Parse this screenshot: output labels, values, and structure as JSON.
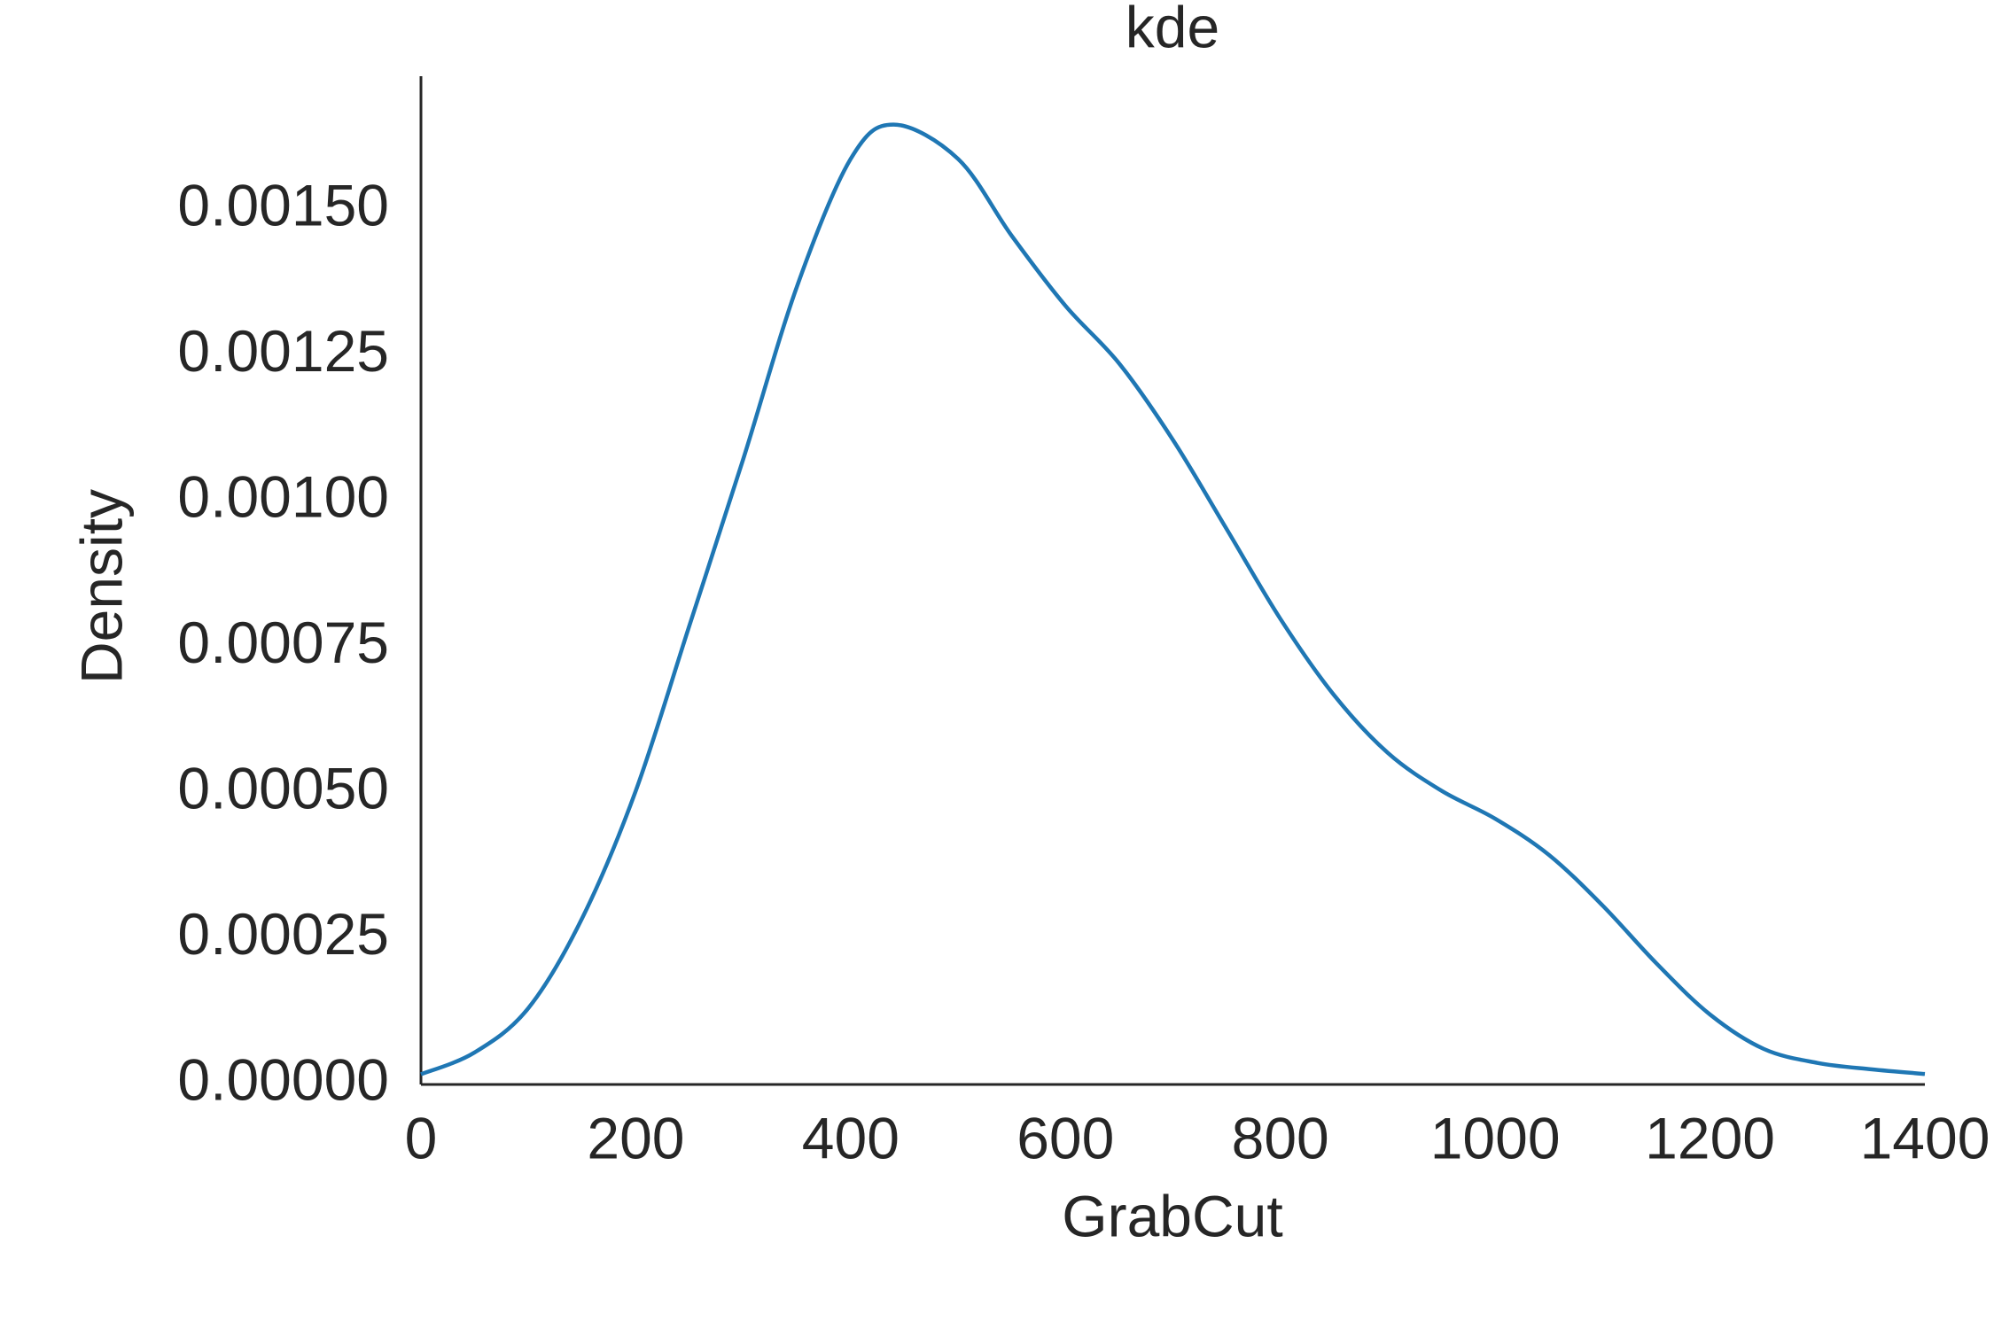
{
  "chart_data": {
    "type": "line",
    "title": "kde",
    "x_label": "GrabCut",
    "y_label": "Density",
    "x": [
      0,
      50,
      100,
      150,
      200,
      250,
      300,
      350,
      400,
      440,
      500,
      550,
      600,
      650,
      700,
      750,
      800,
      850,
      900,
      950,
      1000,
      1050,
      1100,
      1150,
      1200,
      1250,
      1300,
      1350,
      1400
    ],
    "series": [
      {
        "name": "GrabCut",
        "color": "#1f77b4",
        "values": [
          1.75e-05,
          5.5e-05,
          0.000131,
          0.000285,
          0.000504,
          0.000788,
          0.001073,
          0.001369,
          0.001588,
          0.001647,
          0.001588,
          0.001456,
          0.001336,
          0.001237,
          0.001106,
          0.000953,
          0.000799,
          0.000668,
          0.000569,
          0.000504,
          0.000456,
          0.000394,
          0.000307,
          0.000208,
          0.00012,
          6.1e-05,
          3.7e-05,
          2.6e-05,
          1.8e-05
        ]
      }
    ],
    "xlim": [
      0,
      1400
    ],
    "xticks": [
      0,
      200,
      400,
      600,
      800,
      1000,
      1200,
      1400
    ],
    "ylim": [
      0,
      0.00173
    ],
    "yticks": [
      {
        "value": 0,
        "label": "0.00000"
      },
      {
        "value": 0.00025,
        "label": "0.00025"
      },
      {
        "value": 0.0005,
        "label": "0.00050"
      },
      {
        "value": 0.00075,
        "label": "0.00075"
      },
      {
        "value": 0.001,
        "label": "0.00100"
      },
      {
        "value": 0.00125,
        "label": "0.00125"
      },
      {
        "value": 0.0015,
        "label": "0.00150"
      }
    ],
    "grid": false
  }
}
